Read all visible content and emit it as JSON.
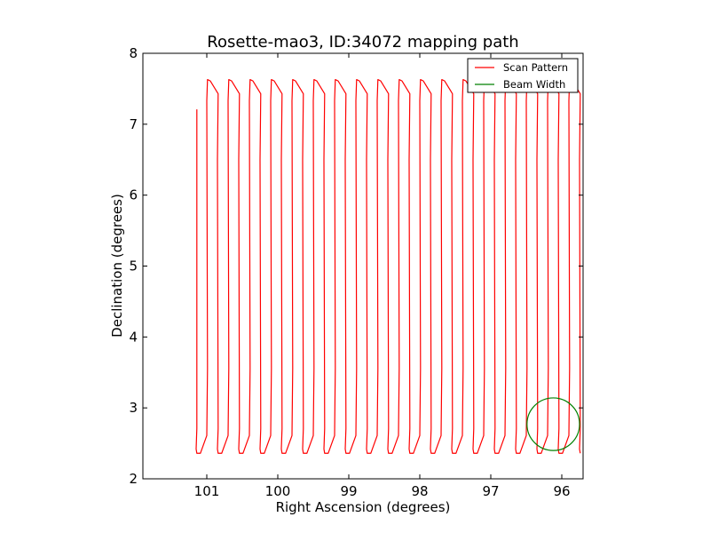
{
  "chart_data": {
    "type": "line",
    "title": "Rosette-mao3, ID:34072 mapping path",
    "xlabel": "Right Ascension (degrees)",
    "ylabel": "Declination (degrees)",
    "xlim": [
      101.9,
      95.7
    ],
    "ylim": [
      2,
      8
    ],
    "x_ticks": [
      {
        "value": 101,
        "label": "101"
      },
      {
        "value": 100,
        "label": "100"
      },
      {
        "value": 99,
        "label": "99"
      },
      {
        "value": 98,
        "label": "98"
      },
      {
        "value": 97,
        "label": "97"
      },
      {
        "value": 96,
        "label": "96"
      }
    ],
    "y_ticks": [
      {
        "value": 2,
        "label": "2"
      },
      {
        "value": 3,
        "label": "3"
      },
      {
        "value": 4,
        "label": "4"
      },
      {
        "value": 5,
        "label": "5"
      },
      {
        "value": 6,
        "label": "6"
      },
      {
        "value": 7,
        "label": "7"
      },
      {
        "value": 8,
        "label": "8"
      }
    ],
    "grid": false,
    "legend_position": "top-right",
    "scan_pattern": {
      "name": "Scan Pattern",
      "color": "#ff0000",
      "dec_low": 2.36,
      "dec_high": 7.63,
      "start_ra": 101.14,
      "start_dec": 7.21,
      "bottom_ra": [
        101.14,
        100.84,
        100.54,
        100.24,
        99.94,
        99.64,
        99.34,
        99.04,
        98.74,
        98.44,
        98.14,
        97.84,
        97.54,
        97.24,
        96.94,
        96.64,
        96.34,
        96.04,
        95.74
      ],
      "top_ra": [
        100.99,
        100.69,
        100.39,
        100.09,
        99.79,
        99.49,
        99.19,
        98.89,
        98.59,
        98.29,
        97.99,
        97.69,
        97.39,
        97.09,
        96.79,
        96.49,
        96.19,
        95.89
      ]
    },
    "beam_width": {
      "name": "Beam Width",
      "color": "#008000",
      "center_ra": 96.12,
      "center_dec": 2.77,
      "radius_deg": 0.37
    }
  }
}
